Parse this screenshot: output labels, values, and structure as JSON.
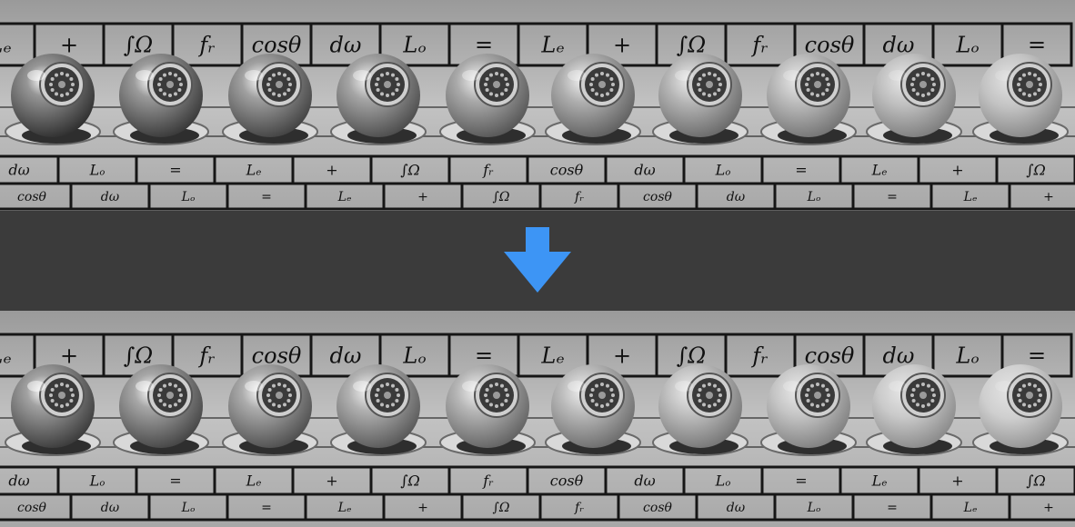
{
  "colors": {
    "band": "#3b3b3b",
    "arrow": "#3d95f5",
    "grid_line": "#161616",
    "tile": "#b9b9b9"
  },
  "arrow_icon": "down-arrow-icon",
  "rows": {
    "top_row": [
      "Lₑ",
      "+",
      "∫Ω",
      "fᵣ",
      "cosθ",
      "dω",
      "Lₒ",
      "=",
      "Lₑ",
      "+",
      "∫Ω",
      "fᵣ",
      "cosθ",
      "dω",
      "Lₒ",
      "="
    ],
    "lower_row_1": [
      "dω",
      "Lₒ",
      "=",
      "Lₑ",
      "+",
      "∫Ω",
      "fᵣ",
      "cosθ",
      "dω",
      "Lₒ",
      "=",
      "Lₑ",
      "+",
      "∫Ω"
    ],
    "lower_row_2": [
      "cosθ",
      "dω",
      "Lₒ",
      "=",
      "Lₑ",
      "+",
      "∫Ω",
      "fᵣ",
      "cosθ",
      "dω",
      "Lₒ",
      "=",
      "Lₑ",
      "+"
    ]
  },
  "spheres": {
    "count": 10,
    "roughness": [
      0.0,
      0.1,
      0.2,
      0.3,
      0.4,
      0.5,
      0.6,
      0.7,
      0.8,
      0.9
    ]
  }
}
